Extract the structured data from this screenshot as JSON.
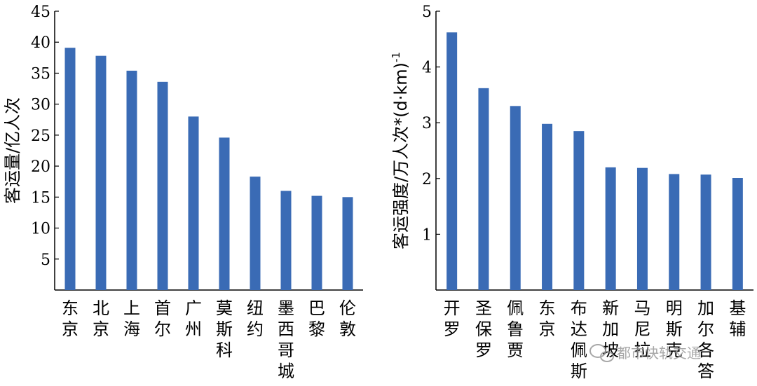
{
  "chart_data": [
    {
      "type": "bar",
      "categories": [
        "东京",
        "北京",
        "上海",
        "首尔",
        "广州",
        "莫斯科",
        "纽约",
        "墨西哥城",
        "巴黎",
        "伦敦"
      ],
      "values": [
        39.1,
        37.8,
        35.4,
        33.6,
        28.0,
        24.6,
        18.3,
        16.0,
        15.2,
        15.0
      ],
      "ylabel": "客运量/亿人次",
      "ylim": [
        0,
        45
      ],
      "yticks": [
        5,
        10,
        15,
        20,
        25,
        30,
        35,
        40,
        45
      ],
      "bar_color": "#3a6bb5",
      "grid": false
    },
    {
      "type": "bar",
      "categories": [
        "开罗",
        "圣保罗",
        "佩鲁贾",
        "东京",
        "布达佩斯",
        "新加坡",
        "马尼拉",
        "明斯克",
        "加尔各答",
        "基辅"
      ],
      "values": [
        4.62,
        3.62,
        3.3,
        2.98,
        2.85,
        2.2,
        2.19,
        2.08,
        2.07,
        2.01
      ],
      "ylabel": "客运强度/万人次*(d·km)",
      "ylabel_sup": "-1",
      "ylim": [
        0,
        5
      ],
      "yticks": [
        1,
        2,
        3,
        4,
        5
      ],
      "bar_color": "#3a6bb5",
      "grid": false
    }
  ],
  "watermark": {
    "text": "都市快轨交通",
    "icon": "wechat-icon"
  }
}
